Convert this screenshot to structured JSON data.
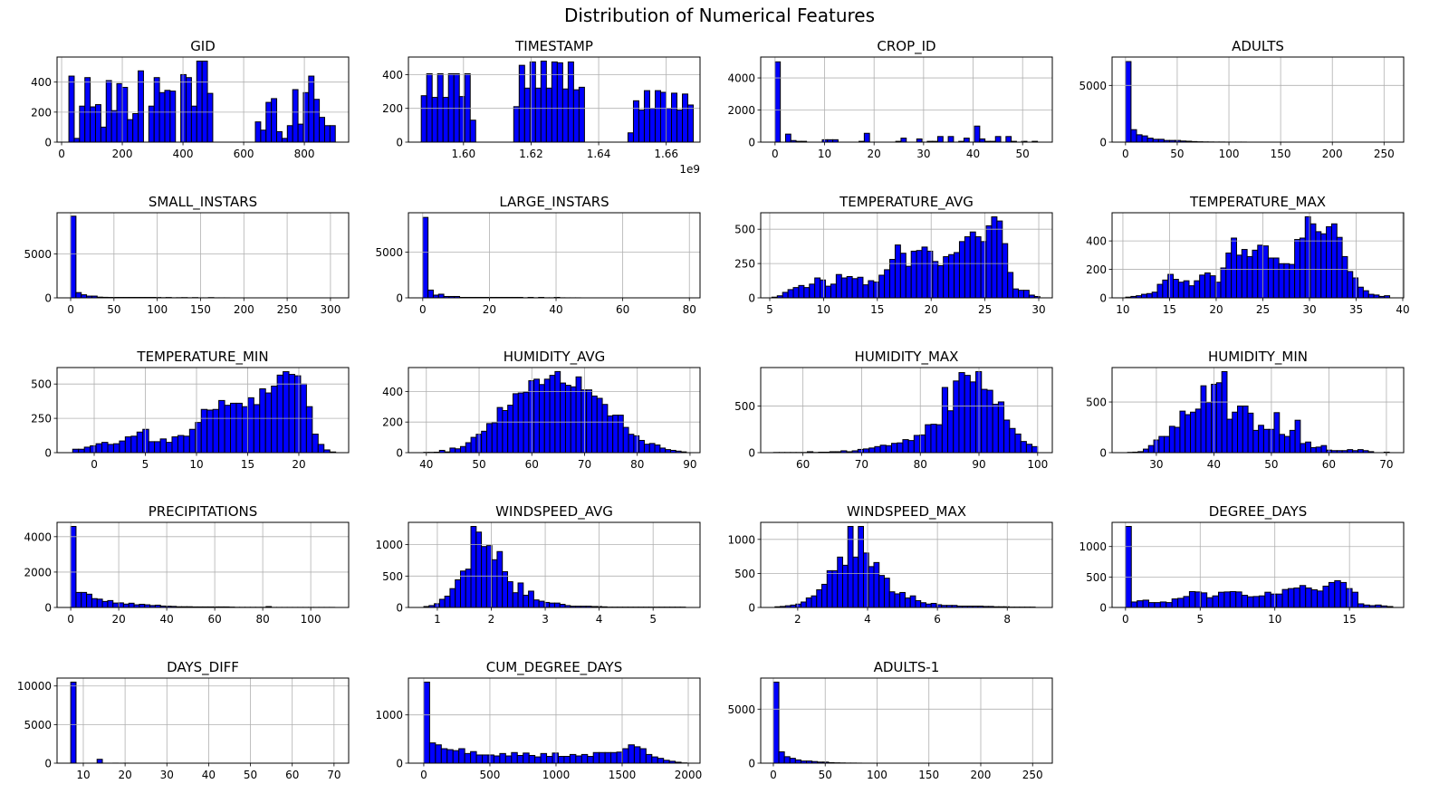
{
  "title": "Distribution of Numerical Features",
  "colors": {
    "bar": "#0000ff",
    "edge": "#000000",
    "grid": "#b0b0b0"
  },
  "chart_data": [
    {
      "type": "bar",
      "title": "GID",
      "range": [
        24,
        902
      ],
      "xlim": [
        -15,
        946
      ],
      "ylim": [
        0,
        567
      ],
      "xticks": [
        "0",
        "200",
        "400",
        "600",
        "800"
      ],
      "yticks": [
        "0",
        "200",
        "400"
      ],
      "counts": [
        440,
        25,
        240,
        430,
        235,
        250,
        100,
        410,
        210,
        390,
        365,
        150,
        190,
        475,
        0,
        240,
        430,
        330,
        345,
        340,
        0,
        450,
        430,
        240,
        540,
        540,
        325,
        0,
        0,
        0,
        0,
        0,
        0,
        0,
        0,
        135,
        80,
        265,
        290,
        70,
        25,
        110,
        350,
        120,
        330,
        440,
        285,
        165,
        110,
        110
      ]
    },
    {
      "type": "bar",
      "title": "TIMESTAMP",
      "range": [
        1.5875,
        1.668
      ],
      "xlim": [
        1.5837,
        1.67
      ],
      "ylim": [
        0,
        504
      ],
      "xticks": [
        "1.60",
        "1.62",
        "1.64",
        "1.66"
      ],
      "yticks": [
        "0",
        "200",
        "400"
      ],
      "offset_text": "1e9",
      "counts": [
        275,
        405,
        265,
        405,
        265,
        405,
        405,
        270,
        405,
        130,
        0,
        0,
        0,
        0,
        0,
        0,
        0,
        210,
        455,
        320,
        475,
        320,
        480,
        320,
        475,
        470,
        315,
        475,
        310,
        325,
        0,
        0,
        0,
        0,
        0,
        0,
        0,
        0,
        55,
        245,
        190,
        305,
        200,
        305,
        295,
        200,
        290,
        190,
        285,
        220
      ]
    },
    {
      "type": "bar",
      "title": "CROP_ID",
      "range": [
        0,
        53
      ],
      "xlim": [
        -2.9,
        56
      ],
      "ylim": [
        0,
        5300
      ],
      "xticks": [
        "0",
        "10",
        "20",
        "30",
        "40",
        "50"
      ],
      "yticks": [
        "0",
        "2000",
        "4000"
      ],
      "counts": [
        5000,
        0,
        500,
        100,
        50,
        50,
        0,
        0,
        0,
        150,
        150,
        150,
        0,
        0,
        0,
        0,
        50,
        550,
        0,
        0,
        0,
        0,
        0,
        50,
        250,
        0,
        0,
        200,
        0,
        50,
        50,
        350,
        0,
        350,
        0,
        50,
        250,
        0,
        1000,
        200,
        50,
        50,
        350,
        0,
        350,
        50,
        0,
        50,
        0,
        50
      ]
    },
    {
      "type": "bar",
      "title": "ADULTS",
      "range": [
        0,
        266
      ],
      "xlim": [
        -13,
        269
      ],
      "ylim": [
        0,
        7500
      ],
      "xticks": [
        "0",
        "50",
        "100",
        "150",
        "200",
        "250"
      ],
      "yticks": [
        "0",
        "5000"
      ],
      "counts": [
        7100,
        1100,
        650,
        550,
        350,
        250,
        250,
        150,
        150,
        150,
        100,
        80,
        50,
        30,
        20,
        15,
        10,
        10,
        5,
        5,
        5,
        5
      ],
      "bins": 50
    },
    {
      "type": "bar",
      "title": "SMALL_INSTARS",
      "range": [
        0,
        306
      ],
      "xlim": [
        -15.7,
        321
      ],
      "ylim": [
        0,
        9690
      ],
      "xticks": [
        "0",
        "50",
        "100",
        "150",
        "200",
        "250",
        "300"
      ],
      "yticks": [
        "0",
        "5000"
      ],
      "counts": [
        9300,
        600,
        350,
        200,
        200,
        80,
        60,
        50,
        50,
        50,
        50,
        50,
        50,
        50,
        50,
        50,
        40,
        20,
        40,
        10,
        20,
        30,
        10,
        30,
        5,
        5,
        30,
        5,
        5,
        5
      ],
      "bins": 50
    },
    {
      "type": "bar",
      "title": "LARGE_INSTARS",
      "range": [
        0,
        79
      ],
      "xlim": [
        -4.3,
        83.2
      ],
      "ylim": [
        0,
        9310
      ],
      "xticks": [
        "0",
        "20",
        "40",
        "60",
        "80"
      ],
      "yticks": [
        "0",
        "5000"
      ],
      "counts": [
        8800,
        850,
        300,
        400,
        150,
        150,
        150,
        50,
        50,
        50,
        50,
        50,
        50,
        50,
        50,
        50,
        50,
        50,
        50,
        10,
        50,
        10,
        50,
        10,
        10,
        50,
        10,
        5,
        5,
        5
      ],
      "bins": 50
    },
    {
      "type": "bar",
      "title": "TEMPERATURE_AVG",
      "range": [
        5.2,
        30.1
      ],
      "xlim": [
        4.16,
        31.26
      ],
      "ylim": [
        0,
        620
      ],
      "xticks": [
        "5",
        "10",
        "15",
        "20",
        "25",
        "30"
      ],
      "yticks": [
        "0",
        "250",
        "500"
      ],
      "counts": [
        5,
        15,
        40,
        60,
        75,
        90,
        75,
        100,
        145,
        130,
        85,
        100,
        170,
        145,
        155,
        140,
        150,
        95,
        125,
        115,
        165,
        205,
        280,
        385,
        325,
        230,
        340,
        345,
        370,
        340,
        265,
        235,
        300,
        315,
        330,
        410,
        445,
        480,
        445,
        410,
        525,
        590,
        560,
        395,
        185,
        65,
        55,
        55,
        20,
        10
      ]
    },
    {
      "type": "bar",
      "title": "TEMPERATURE_MAX",
      "range": [
        10.3,
        38.6
      ],
      "xlim": [
        8.84,
        40.1
      ],
      "ylim": [
        0,
        598
      ],
      "xticks": [
        "10",
        "15",
        "20",
        "25",
        "30",
        "35",
        "40"
      ],
      "yticks": [
        "0",
        "200",
        "400"
      ],
      "counts": [
        5,
        10,
        15,
        25,
        30,
        40,
        95,
        125,
        165,
        130,
        110,
        120,
        85,
        120,
        160,
        175,
        155,
        110,
        210,
        315,
        420,
        300,
        340,
        290,
        335,
        370,
        365,
        280,
        280,
        240,
        240,
        235,
        410,
        420,
        570,
        520,
        465,
        450,
        500,
        520,
        425,
        290,
        185,
        140,
        75,
        50,
        25,
        20,
        10,
        15
      ]
    },
    {
      "type": "bar",
      "title": "TEMPERATURE_MIN",
      "range": [
        -2.1,
        23.6
      ],
      "xlim": [
        -3.63,
        24.87
      ],
      "ylim": [
        0,
        620
      ],
      "xticks": [
        "0",
        "5",
        "10",
        "15",
        "20"
      ],
      "yticks": [
        "0",
        "250",
        "500"
      ],
      "counts": [
        25,
        25,
        40,
        50,
        65,
        75,
        60,
        65,
        85,
        115,
        120,
        150,
        170,
        80,
        80,
        100,
        75,
        115,
        125,
        120,
        170,
        220,
        315,
        310,
        315,
        380,
        345,
        360,
        360,
        335,
        400,
        350,
        465,
        435,
        485,
        565,
        590,
        570,
        560,
        500,
        335,
        135,
        60,
        20,
        5
      ]
    },
    {
      "type": "bar",
      "title": "HUMIDITY_AVG",
      "range": [
        39.5,
        89.3
      ],
      "xlim": [
        36.6,
        91.9
      ],
      "ylim": [
        0,
        556
      ],
      "xticks": [
        "40",
        "50",
        "60",
        "70",
        "80",
        "90"
      ],
      "yticks": [
        "0",
        "200",
        "400"
      ],
      "counts": [
        2,
        2,
        3,
        15,
        5,
        30,
        25,
        40,
        65,
        100,
        120,
        140,
        190,
        195,
        295,
        275,
        310,
        385,
        390,
        395,
        470,
        480,
        445,
        480,
        505,
        530,
        455,
        440,
        430,
        495,
        410,
        410,
        370,
        355,
        315,
        240,
        245,
        245,
        165,
        120,
        110,
        80,
        55,
        60,
        50,
        30,
        20,
        15,
        10,
        5
      ]
    },
    {
      "type": "bar",
      "title": "HUMIDITY_MAX",
      "range": [
        55,
        100
      ],
      "xlim": [
        52.8,
        102.5
      ],
      "ylim": [
        0,
        914
      ],
      "xticks": [
        "60",
        "70",
        "80",
        "90",
        "100"
      ],
      "yticks": [
        "0",
        "500"
      ],
      "counts": [
        2,
        2,
        2,
        2,
        2,
        2,
        10,
        2,
        5,
        5,
        10,
        10,
        20,
        10,
        20,
        35,
        40,
        50,
        65,
        80,
        75,
        100,
        105,
        140,
        130,
        185,
        190,
        300,
        305,
        300,
        700,
        450,
        770,
        860,
        830,
        760,
        870,
        680,
        670,
        520,
        545,
        350,
        260,
        200,
        120,
        90,
        65
      ]
    },
    {
      "type": "bar",
      "title": "HUMIDITY_MIN",
      "range": [
        25,
        70.5
      ],
      "xlim": [
        22.3,
        73
      ],
      "ylim": [
        0,
        840
      ],
      "xticks": [
        "30",
        "40",
        "50",
        "60",
        "70"
      ],
      "yticks": [
        "0",
        "500"
      ],
      "counts": [
        3,
        5,
        10,
        35,
        70,
        125,
        160,
        160,
        260,
        250,
        410,
        375,
        400,
        430,
        660,
        495,
        675,
        690,
        800,
        330,
        400,
        460,
        460,
        390,
        220,
        270,
        230,
        230,
        395,
        180,
        160,
        220,
        320,
        90,
        105,
        50,
        55,
        70,
        25,
        20,
        20,
        20,
        30,
        20,
        30,
        20,
        10,
        0,
        0,
        5
      ]
    },
    {
      "type": "bar",
      "title": "PRECIPITATIONS",
      "range": [
        0,
        110
      ],
      "xlim": [
        -5.7,
        115.8
      ],
      "ylim": [
        0,
        4810
      ],
      "xticks": [
        "0",
        "20",
        "40",
        "60",
        "80",
        "100"
      ],
      "yticks": [
        "0",
        "2000",
        "4000"
      ],
      "counts": [
        4580,
        850,
        850,
        750,
        500,
        470,
        340,
        390,
        250,
        260,
        190,
        240,
        150,
        180,
        150,
        110,
        130,
        80,
        70,
        60,
        40,
        40,
        40,
        30,
        30,
        30,
        30,
        30,
        30,
        30,
        20,
        10,
        10,
        10,
        10,
        10,
        10,
        50,
        5,
        5,
        5,
        5,
        5,
        5,
        5,
        5,
        5,
        5,
        5,
        5
      ]
    },
    {
      "type": "bar",
      "title": "WINDSPEED_AVG",
      "range": [
        0.75,
        5.6
      ],
      "xlim": [
        0.464,
        5.87
      ],
      "ylim": [
        0,
        1355
      ],
      "xticks": [
        "1",
        "2",
        "3",
        "4",
        "5"
      ],
      "yticks": [
        "0",
        "500",
        "1000"
      ],
      "counts": [
        15,
        30,
        60,
        130,
        180,
        300,
        440,
        580,
        610,
        1290,
        1200,
        970,
        985,
        760,
        890,
        570,
        410,
        235,
        390,
        195,
        260,
        120,
        100,
        80,
        70,
        70,
        50,
        30,
        20,
        20,
        20,
        20,
        15,
        15,
        10,
        5,
        5,
        5,
        5,
        5,
        5,
        5,
        5,
        5,
        5,
        5,
        5,
        5,
        5,
        5
      ]
    },
    {
      "type": "bar",
      "title": "WINDSPEED_MAX",
      "range": [
        1.35,
        8.8
      ],
      "xlim": [
        0.94,
        9.29
      ],
      "ylim": [
        0,
        1250
      ],
      "xticks": [
        "2",
        "4",
        "6",
        "8"
      ],
      "yticks": [
        "0",
        "500",
        "1000"
      ],
      "counts": [
        10,
        15,
        25,
        35,
        50,
        80,
        140,
        170,
        260,
        340,
        540,
        540,
        740,
        620,
        1190,
        740,
        1190,
        800,
        600,
        660,
        470,
        430,
        230,
        200,
        220,
        140,
        170,
        100,
        70,
        50,
        60,
        40,
        30,
        30,
        30,
        20,
        20,
        20,
        20,
        20,
        15,
        15,
        10,
        10,
        10,
        5,
        5,
        5,
        5,
        5
      ]
    },
    {
      "type": "bar",
      "title": "DEGREE_DAYS",
      "range": [
        0,
        17.9
      ],
      "xlim": [
        -0.9,
        18.63
      ],
      "ylim": [
        0,
        1397
      ],
      "xticks": [
        "0",
        "5",
        "10",
        "15"
      ],
      "yticks": [
        "0",
        "500",
        "1000"
      ],
      "counts": [
        1330,
        90,
        110,
        120,
        80,
        80,
        90,
        80,
        140,
        150,
        180,
        260,
        255,
        240,
        160,
        190,
        250,
        255,
        260,
        255,
        200,
        175,
        180,
        190,
        250,
        220,
        220,
        295,
        310,
        320,
        360,
        320,
        290,
        270,
        350,
        410,
        440,
        410,
        310,
        250,
        60,
        40,
        30,
        40,
        25,
        15
      ]
    },
    {
      "type": "bar",
      "title": "DAYS_DIFF",
      "range": [
        7,
        70
      ],
      "xlim": [
        3.72,
        73.5
      ],
      "ylim": [
        0,
        11025
      ],
      "xticks": [
        "10",
        "20",
        "30",
        "40",
        "50",
        "60",
        "70"
      ],
      "yticks": [
        "0",
        "5000",
        "10000"
      ],
      "counts": [
        10500,
        0,
        0,
        0,
        0,
        500,
        0,
        0,
        5,
        0,
        5
      ],
      "bins": 50
    },
    {
      "type": "bar",
      "title": "CUM_DEGREE_DAYS",
      "range": [
        0,
        1990
      ],
      "xlim": [
        -116,
        2089
      ],
      "ylim": [
        0,
        1764
      ],
      "xticks": [
        "0",
        "500",
        "1000",
        "1500",
        "2000"
      ],
      "yticks": [
        "0",
        "1000"
      ],
      "counts": [
        1680,
        420,
        380,
        300,
        280,
        260,
        300,
        200,
        240,
        170,
        170,
        170,
        150,
        200,
        150,
        220,
        160,
        210,
        160,
        130,
        200,
        140,
        210,
        140,
        140,
        180,
        150,
        180,
        140,
        220,
        220,
        220,
        220,
        230,
        300,
        380,
        340,
        300,
        180,
        130,
        100,
        60,
        40,
        20,
        5
      ]
    },
    {
      "type": "bar",
      "title": "ADULTS-1",
      "range": [
        0,
        266
      ],
      "xlim": [
        -12.2,
        269
      ],
      "ylim": [
        0,
        7875
      ],
      "xticks": [
        "0",
        "50",
        "100",
        "150",
        "200",
        "250"
      ],
      "yticks": [
        "0",
        "5000"
      ],
      "counts": [
        7500,
        1050,
        600,
        450,
        300,
        200,
        200,
        150,
        100,
        100,
        50,
        30,
        20,
        10,
        10,
        5
      ],
      "bins": 50
    }
  ]
}
